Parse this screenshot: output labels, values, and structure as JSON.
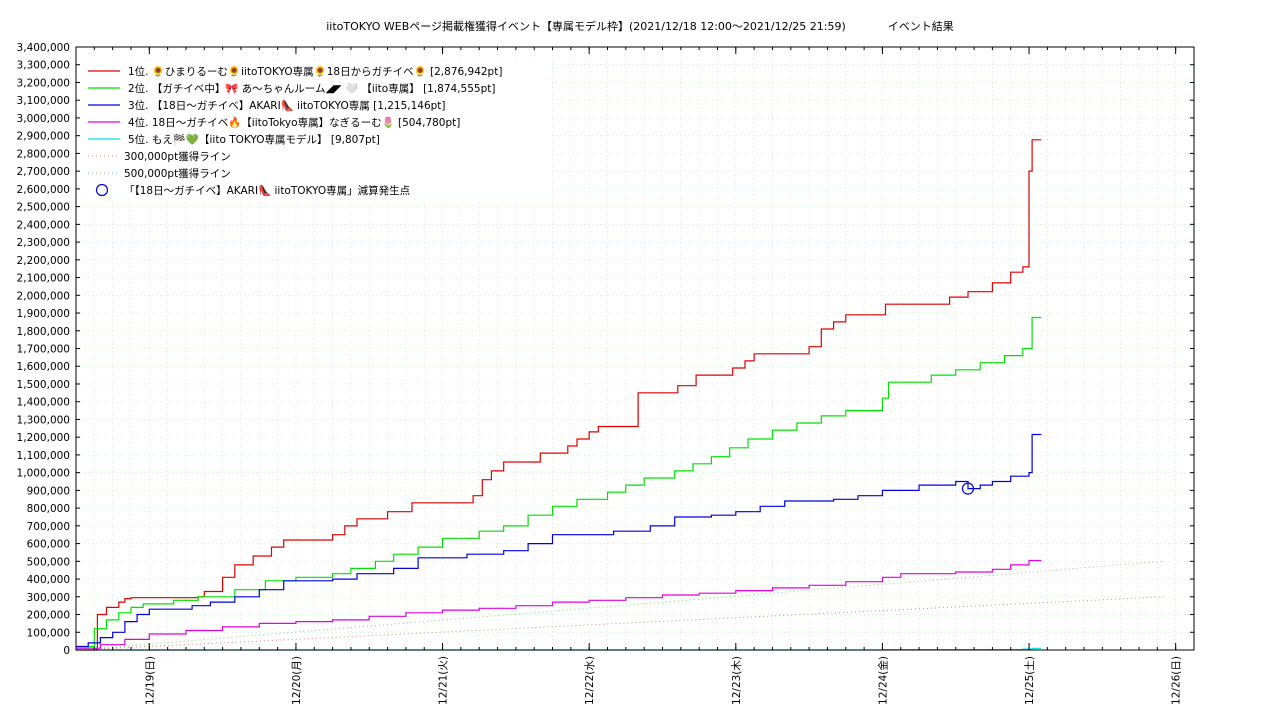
{
  "chart_data": {
    "type": "line",
    "title": "iitoTOKYO WEBページ掲載権獲得イベント【専属モデル枠】(2021/12/18 12:00〜2021/12/25 21:59)            イベント結果",
    "xlabel": "",
    "ylabel": "",
    "ylim": [
      0,
      3400000
    ],
    "ytick_step": 100000,
    "y_tick_labels": [
      "0",
      "100,000",
      "200,000",
      "300,000",
      "400,000",
      "500,000",
      "600,000",
      "700,000",
      "800,000",
      "900,000",
      "1,000,000",
      "1,100,000",
      "1,200,000",
      "1,300,000",
      "1,400,000",
      "1,500,000",
      "1,600,000",
      "1,700,000",
      "1,800,000",
      "1,900,000",
      "2,000,000",
      "2,100,000",
      "2,200,000",
      "2,300,000",
      "2,400,000",
      "2,500,000",
      "2,600,000",
      "2,700,000",
      "2,800,000",
      "2,900,000",
      "3,000,000",
      "3,100,000",
      "3,200,000",
      "3,300,000",
      "3,400,000"
    ],
    "xlim": [
      "2021-12-18 12:00",
      "2021-12-26 03:00"
    ],
    "x_tick_labels": [
      {
        "at": "2021-12-19 00:00",
        "label": "12/19(日)"
      },
      {
        "at": "2021-12-20 00:00",
        "label": "12/20(月)"
      },
      {
        "at": "2021-12-21 00:00",
        "label": "12/21(火)"
      },
      {
        "at": "2021-12-22 00:00",
        "label": "12/22(水)"
      },
      {
        "at": "2021-12-23 00:00",
        "label": "12/23(木)"
      },
      {
        "at": "2021-12-24 00:00",
        "label": "12/24(金)"
      },
      {
        "at": "2021-12-25 00:00",
        "label": "12/25(土)"
      },
      {
        "at": "2021-12-26 00:00",
        "label": "12/26(日)"
      }
    ],
    "grid": true,
    "legend_position": "top-left",
    "series": [
      {
        "name": "1位. 🌻ひまりるーむ🌻iitoTOKYO専属🌻18日からガチイベ🌻 [2,876,942pt]",
        "color": "#e00000",
        "step": true,
        "points": [
          [
            "2021-12-18 12:00",
            0
          ],
          [
            "2021-12-18 15:00",
            0
          ],
          [
            "2021-12-18 15:30",
            200000
          ],
          [
            "2021-12-18 17:00",
            240000
          ],
          [
            "2021-12-18 19:00",
            270000
          ],
          [
            "2021-12-18 20:00",
            290000
          ],
          [
            "2021-12-18 21:00",
            295000
          ],
          [
            "2021-12-19 08:00",
            300000
          ],
          [
            "2021-12-19 09:00",
            330000
          ],
          [
            "2021-12-19 12:00",
            410000
          ],
          [
            "2021-12-19 14:00",
            480000
          ],
          [
            "2021-12-19 17:00",
            530000
          ],
          [
            "2021-12-19 20:00",
            580000
          ],
          [
            "2021-12-19 22:00",
            620000
          ],
          [
            "2021-12-20 04:00",
            620000
          ],
          [
            "2021-12-20 06:00",
            650000
          ],
          [
            "2021-12-20 08:00",
            700000
          ],
          [
            "2021-12-20 10:00",
            740000
          ],
          [
            "2021-12-20 15:00",
            780000
          ],
          [
            "2021-12-20 19:00",
            830000
          ],
          [
            "2021-12-21 04:00",
            830000
          ],
          [
            "2021-12-21 05:00",
            870000
          ],
          [
            "2021-12-21 06:30",
            960000
          ],
          [
            "2021-12-21 08:00",
            1010000
          ],
          [
            "2021-12-21 10:00",
            1060000
          ],
          [
            "2021-12-21 16:00",
            1110000
          ],
          [
            "2021-12-21 20:30",
            1150000
          ],
          [
            "2021-12-21 22:00",
            1190000
          ],
          [
            "2021-12-22 00:00",
            1230000
          ],
          [
            "2021-12-22 01:30",
            1260000
          ],
          [
            "2021-12-22 07:30",
            1260000
          ],
          [
            "2021-12-22 08:00",
            1450000
          ],
          [
            "2021-12-22 14:30",
            1490000
          ],
          [
            "2021-12-22 17:30",
            1550000
          ],
          [
            "2021-12-22 23:30",
            1590000
          ],
          [
            "2021-12-23 01:30",
            1630000
          ],
          [
            "2021-12-23 03:00",
            1670000
          ],
          [
            "2021-12-23 12:00",
            1710000
          ],
          [
            "2021-12-23 14:00",
            1810000
          ],
          [
            "2021-12-23 16:00",
            1850000
          ],
          [
            "2021-12-23 18:00",
            1890000
          ],
          [
            "2021-12-24 00:00",
            1890000
          ],
          [
            "2021-12-24 00:30",
            1950000
          ],
          [
            "2021-12-24 10:00",
            1950000
          ],
          [
            "2021-12-24 11:00",
            1990000
          ],
          [
            "2021-12-24 14:00",
            2020000
          ],
          [
            "2021-12-24 18:00",
            2070000
          ],
          [
            "2021-12-24 21:00",
            2130000
          ],
          [
            "2021-12-24 23:00",
            2160000
          ],
          [
            "2021-12-25 00:00",
            2700000
          ],
          [
            "2021-12-25 00:30",
            2876942
          ],
          [
            "2021-12-25 02:00",
            2876942
          ]
        ]
      },
      {
        "name": "2位. 【ガチイベ中】🎀 あ〜ちゃんルーム◢◤ 🤍 【iito専属】 [1,874,555pt]",
        "color": "#00e000",
        "step": true,
        "points": [
          [
            "2021-12-18 12:00",
            10000
          ],
          [
            "2021-12-18 14:00",
            20000
          ],
          [
            "2021-12-18 15:00",
            120000
          ],
          [
            "2021-12-18 17:00",
            170000
          ],
          [
            "2021-12-18 19:00",
            210000
          ],
          [
            "2021-12-18 21:00",
            240000
          ],
          [
            "2021-12-18 23:00",
            260000
          ],
          [
            "2021-12-19 04:00",
            280000
          ],
          [
            "2021-12-19 08:00",
            300000
          ],
          [
            "2021-12-19 14:00",
            340000
          ],
          [
            "2021-12-19 19:00",
            390000
          ],
          [
            "2021-12-20 00:00",
            410000
          ],
          [
            "2021-12-20 06:00",
            430000
          ],
          [
            "2021-12-20 09:00",
            460000
          ],
          [
            "2021-12-20 13:00",
            500000
          ],
          [
            "2021-12-20 16:00",
            540000
          ],
          [
            "2021-12-20 20:00",
            580000
          ],
          [
            "2021-12-21 00:00",
            630000
          ],
          [
            "2021-12-21 06:00",
            670000
          ],
          [
            "2021-12-21 10:00",
            700000
          ],
          [
            "2021-12-21 14:00",
            760000
          ],
          [
            "2021-12-21 18:00",
            810000
          ],
          [
            "2021-12-21 22:00",
            850000
          ],
          [
            "2021-12-22 03:00",
            890000
          ],
          [
            "2021-12-22 06:00",
            930000
          ],
          [
            "2021-12-22 09:00",
            970000
          ],
          [
            "2021-12-22 14:00",
            1010000
          ],
          [
            "2021-12-22 17:00",
            1050000
          ],
          [
            "2021-12-22 20:00",
            1090000
          ],
          [
            "2021-12-22 23:00",
            1140000
          ],
          [
            "2021-12-23 02:00",
            1190000
          ],
          [
            "2021-12-23 06:00",
            1240000
          ],
          [
            "2021-12-23 10:00",
            1280000
          ],
          [
            "2021-12-23 14:00",
            1320000
          ],
          [
            "2021-12-23 18:00",
            1350000
          ],
          [
            "2021-12-24 00:00",
            1420000
          ],
          [
            "2021-12-24 01:00",
            1510000
          ],
          [
            "2021-12-24 08:00",
            1550000
          ],
          [
            "2021-12-24 12:00",
            1580000
          ],
          [
            "2021-12-24 16:00",
            1620000
          ],
          [
            "2021-12-24 20:00",
            1660000
          ],
          [
            "2021-12-24 23:00",
            1700000
          ],
          [
            "2021-12-25 00:30",
            1874555
          ],
          [
            "2021-12-25 02:00",
            1874555
          ]
        ]
      },
      {
        "name": "3位. 【18日〜ガチイベ】AKARI👠 iitoTOKYO専属 [1,215,146pt]",
        "color": "#0000e0",
        "step": true,
        "points": [
          [
            "2021-12-18 12:00",
            20000
          ],
          [
            "2021-12-18 14:00",
            40000
          ],
          [
            "2021-12-18 16:00",
            70000
          ],
          [
            "2021-12-18 18:00",
            100000
          ],
          [
            "2021-12-18 20:00",
            160000
          ],
          [
            "2021-12-18 22:00",
            200000
          ],
          [
            "2021-12-19 00:00",
            230000
          ],
          [
            "2021-12-19 07:00",
            250000
          ],
          [
            "2021-12-19 10:00",
            270000
          ],
          [
            "2021-12-19 14:00",
            300000
          ],
          [
            "2021-12-19 18:00",
            340000
          ],
          [
            "2021-12-19 22:00",
            390000
          ],
          [
            "2021-12-20 06:00",
            400000
          ],
          [
            "2021-12-20 10:00",
            430000
          ],
          [
            "2021-12-20 16:00",
            460000
          ],
          [
            "2021-12-20 20:00",
            520000
          ],
          [
            "2021-12-21 04:00",
            540000
          ],
          [
            "2021-12-21 10:00",
            560000
          ],
          [
            "2021-12-21 14:00",
            600000
          ],
          [
            "2021-12-21 18:00",
            650000
          ],
          [
            "2021-12-22 04:00",
            670000
          ],
          [
            "2021-12-22 10:00",
            700000
          ],
          [
            "2021-12-22 14:00",
            750000
          ],
          [
            "2021-12-22 20:00",
            760000
          ],
          [
            "2021-12-23 00:00",
            780000
          ],
          [
            "2021-12-23 04:00",
            810000
          ],
          [
            "2021-12-23 08:00",
            840000
          ],
          [
            "2021-12-23 16:00",
            850000
          ],
          [
            "2021-12-23 20:00",
            870000
          ],
          [
            "2021-12-24 00:00",
            900000
          ],
          [
            "2021-12-24 06:00",
            930000
          ],
          [
            "2021-12-24 12:00",
            950000
          ],
          [
            "2021-12-24 14:00",
            910000
          ],
          [
            "2021-12-24 16:00",
            930000
          ],
          [
            "2021-12-24 18:00",
            950000
          ],
          [
            "2021-12-24 21:00",
            980000
          ],
          [
            "2021-12-25 00:00",
            1000000
          ],
          [
            "2021-12-25 00:30",
            1215146
          ],
          [
            "2021-12-25 02:00",
            1215146
          ]
        ]
      },
      {
        "name": "4位. 18日〜ガチイベ🔥【iitoTokyo専属】なぎるーむ🌷 [504,780pt]",
        "color": "#e000e0",
        "step": true,
        "points": [
          [
            "2021-12-18 12:00",
            10000
          ],
          [
            "2021-12-18 16:00",
            30000
          ],
          [
            "2021-12-18 20:00",
            60000
          ],
          [
            "2021-12-19 00:00",
            90000
          ],
          [
            "2021-12-19 06:00",
            110000
          ],
          [
            "2021-12-19 12:00",
            130000
          ],
          [
            "2021-12-19 18:00",
            150000
          ],
          [
            "2021-12-20 00:00",
            160000
          ],
          [
            "2021-12-20 06:00",
            170000
          ],
          [
            "2021-12-20 12:00",
            190000
          ],
          [
            "2021-12-20 18:00",
            210000
          ],
          [
            "2021-12-21 00:00",
            225000
          ],
          [
            "2021-12-21 06:00",
            235000
          ],
          [
            "2021-12-21 12:00",
            250000
          ],
          [
            "2021-12-21 18:00",
            270000
          ],
          [
            "2021-12-22 00:00",
            280000
          ],
          [
            "2021-12-22 06:00",
            295000
          ],
          [
            "2021-12-22 12:00",
            310000
          ],
          [
            "2021-12-22 18:00",
            320000
          ],
          [
            "2021-12-23 00:00",
            335000
          ],
          [
            "2021-12-23 06:00",
            350000
          ],
          [
            "2021-12-23 12:00",
            365000
          ],
          [
            "2021-12-23 18:00",
            385000
          ],
          [
            "2021-12-24 00:00",
            410000
          ],
          [
            "2021-12-24 03:00",
            430000
          ],
          [
            "2021-12-24 12:00",
            440000
          ],
          [
            "2021-12-24 18:00",
            455000
          ],
          [
            "2021-12-24 21:00",
            480000
          ],
          [
            "2021-12-25 00:00",
            504780
          ],
          [
            "2021-12-25 02:00",
            504780
          ]
        ]
      },
      {
        "name": "5位. もえ🏁💚【iito TOKYO専属モデル】 [9,807pt]",
        "color": "#00e0e0",
        "step": true,
        "points": [
          [
            "2021-12-18 12:00",
            0
          ],
          [
            "2021-12-22 00:00",
            0
          ],
          [
            "2021-12-24 00:00",
            2000
          ],
          [
            "2021-12-24 23:00",
            5000
          ],
          [
            "2021-12-25 00:30",
            9807
          ],
          [
            "2021-12-25 02:00",
            9807
          ]
        ]
      },
      {
        "name": "300,000pt獲得ライン",
        "color": "#e08080",
        "dashed": true,
        "points": [
          [
            "2021-12-18 12:00",
            0
          ],
          [
            "2021-12-25 22:00",
            300000
          ]
        ]
      },
      {
        "name": "500,000pt獲得ライン",
        "color": "#80d080",
        "dashed": true,
        "points": [
          [
            "2021-12-18 12:00",
            0
          ],
          [
            "2021-12-25 22:00",
            500000
          ]
        ]
      }
    ],
    "annotations": [
      {
        "name": "「【18日〜ガチイベ】AKARI👠 iitoTOKYO専属」減算発生点",
        "color": "#0000e0",
        "marker": "circle",
        "x": "2021-12-24 14:00",
        "y": 910000
      }
    ]
  }
}
